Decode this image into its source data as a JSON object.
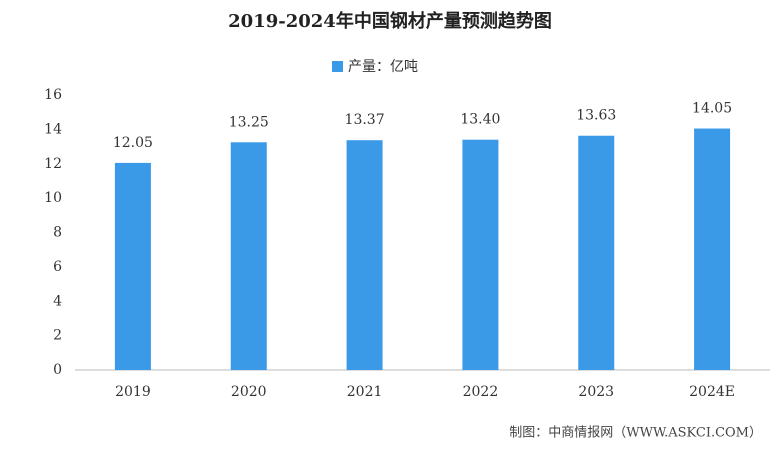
{
  "chart_data": {
    "type": "bar",
    "title": "2019-2024年中国钢材产量预测趋势图",
    "legend": "产量：亿吨",
    "categories": [
      "2019",
      "2020",
      "2021",
      "2022",
      "2023",
      "2024E"
    ],
    "values": [
      12.05,
      13.25,
      13.37,
      13.4,
      13.63,
      14.05
    ],
    "value_labels": [
      "12.05",
      "13.25",
      "13.37",
      "13.40",
      "13.63",
      "14.05"
    ],
    "color": "#3b9ae8",
    "ylim": [
      0,
      16
    ],
    "yticks": [
      0,
      2,
      4,
      6,
      8,
      10,
      12,
      14,
      16
    ],
    "grid": false,
    "source": "制图：中商情报网（WWW.ASKCI.COM）"
  }
}
